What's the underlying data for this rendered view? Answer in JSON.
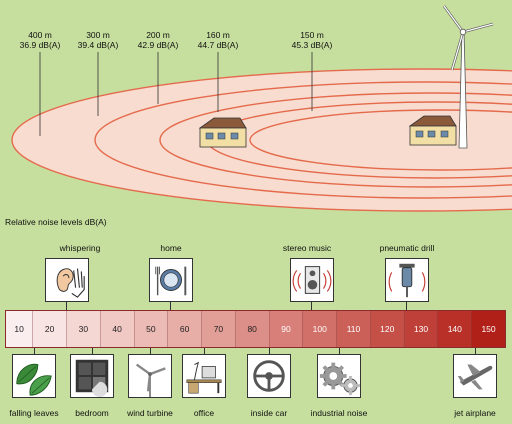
{
  "distances": [
    {
      "distance": "400 m",
      "level": "36.9 dB(A)"
    },
    {
      "distance": "300 m",
      "level": "39.4 dB(A)"
    },
    {
      "distance": "200 m",
      "level": "42.9 dB(A)"
    },
    {
      "distance": "160 m",
      "level": "44.7 dB(A)"
    },
    {
      "distance": "150 m",
      "level": "45.3 dB(A)"
    }
  ],
  "section_title": "Relative noise levels dB(A)",
  "scale": [
    "10",
    "20",
    "30",
    "40",
    "50",
    "60",
    "70",
    "80",
    "90",
    "100",
    "110",
    "120",
    "130",
    "140",
    "150"
  ],
  "scale_colors": [
    "#fbeeee",
    "#f8e4e2",
    "#f4d6d3",
    "#f0c8c4",
    "#ecbbb5",
    "#e7aea7",
    "#e29f98",
    "#dc8f88",
    "#d77f78",
    "#d17068",
    "#cb6058",
    "#c55048",
    "#bf4038",
    "#b83028",
    "#b02018"
  ],
  "top_sources": {
    "whispering": "whispering",
    "home": "home",
    "stereo": "stereo music",
    "drill": "pneumatic drill"
  },
  "bottom_sources": {
    "leaves": "falling leaves",
    "bedroom": "bedroom",
    "turbine": "wind turbine",
    "office": "office",
    "car": "inside car",
    "industrial": "industrial noise",
    "jet": "jet airplane"
  },
  "colors": {
    "background": "#c6df9e",
    "field": "#f7dccf",
    "contour": "#e56a4c"
  }
}
